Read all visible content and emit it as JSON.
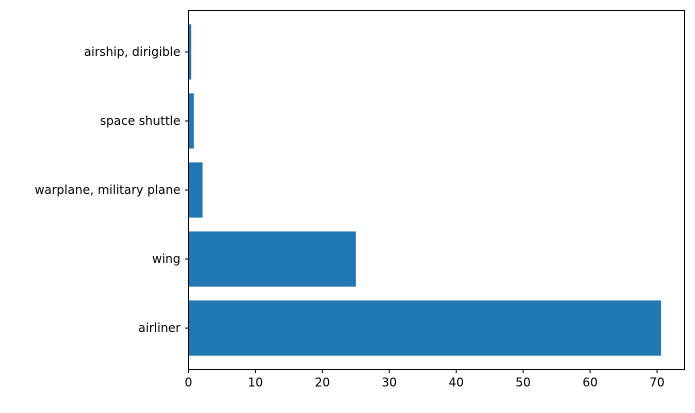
{
  "chart_data": {
    "type": "bar",
    "orientation": "horizontal",
    "categories": [
      "airliner",
      "wing",
      "warplane, military plane",
      "space shuttle",
      "airship, dirigible"
    ],
    "values": [
      70.6,
      25.0,
      2.1,
      0.8,
      0.4
    ],
    "xlim": [
      0,
      74.1
    ],
    "xticks": [
      0,
      10,
      20,
      30,
      40,
      50,
      60,
      70
    ],
    "title": "",
    "xlabel": "",
    "ylabel": "",
    "grid": false,
    "bar_color": "#1f77b4"
  }
}
